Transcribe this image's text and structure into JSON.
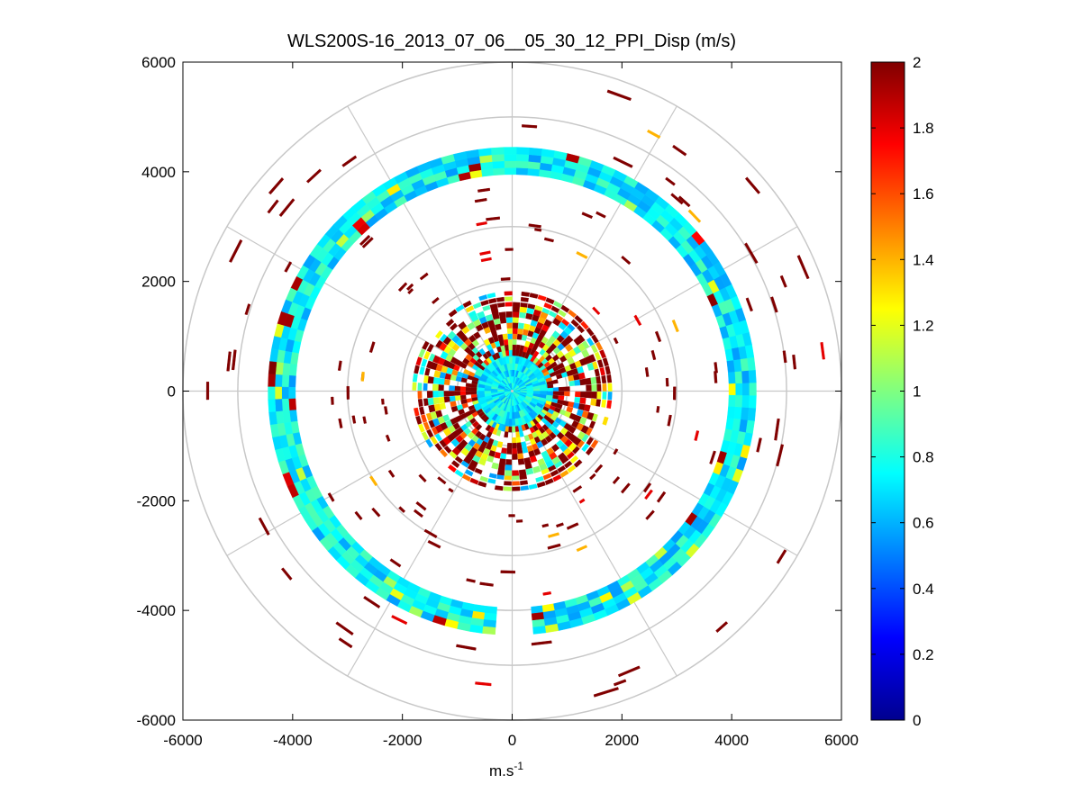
{
  "chart_data": {
    "type": "heatmap",
    "subtype": "polar-ppi-scan",
    "title": "WLS200S-16_2013_07_06__05_30_12_PPI_Disp (m/s)",
    "xlabel": "m.s",
    "xlabel_superscript": "-1",
    "ylabel": "",
    "xlim": [
      -6000,
      6000
    ],
    "ylim": [
      -6000,
      6000
    ],
    "x_ticks": [
      -6000,
      -4000,
      -2000,
      0,
      2000,
      4000,
      6000
    ],
    "y_ticks": [
      -6000,
      -4000,
      -2000,
      0,
      2000,
      4000,
      6000
    ],
    "x_tick_labels": [
      "-6000",
      "-4000",
      "-2000",
      "0",
      "2000",
      "4000",
      "6000"
    ],
    "y_tick_labels": [
      "-6000",
      "-4000",
      "-2000",
      "0",
      "2000",
      "4000",
      "6000"
    ],
    "polar_grid": {
      "ring_radii": [
        1000,
        2000,
        3000,
        4000,
        5000,
        6000
      ],
      "spoke_angles_deg": [
        0,
        30,
        60,
        90,
        120,
        150,
        180,
        210,
        240,
        270,
        300,
        330
      ]
    },
    "colorbar": {
      "min": 0,
      "max": 2,
      "ticks": [
        0,
        0.2,
        0.4,
        0.6,
        0.8,
        1,
        1.2,
        1.4,
        1.6,
        1.8,
        2
      ],
      "tick_labels": [
        "0",
        "0.2",
        "0.4",
        "0.6",
        "0.8",
        "1",
        "1.2",
        "1.4",
        "1.6",
        "1.8",
        "2"
      ],
      "colormap": "jet"
    },
    "data_regions": [
      {
        "name": "inner-core",
        "r_min": 0,
        "r_max": 650,
        "typical_value": 0.8
      },
      {
        "name": "mixed-inner-ring",
        "r_min": 650,
        "r_max": 1850,
        "typical_value": 1.2
      },
      {
        "name": "main-arc",
        "r_min": 3950,
        "r_max": 4450,
        "theta_from_deg": -85,
        "theta_to_deg": 265,
        "typical_value": 0.8
      },
      {
        "name": "sparse-outer-returns",
        "r_min": 2000,
        "r_max": 6000,
        "typical_value": 2.0
      }
    ]
  }
}
